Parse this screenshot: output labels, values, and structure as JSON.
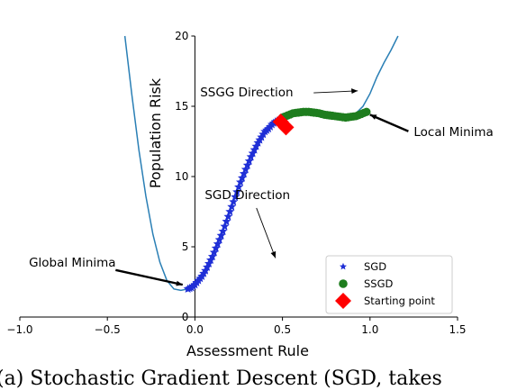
{
  "chart_data": {
    "type": "scatter",
    "xlabel": "Assessment Rule",
    "ylabel": "Population Risk",
    "xlim": [
      -1.0,
      1.5
    ],
    "ylim": [
      0,
      20
    ],
    "xticks": [
      "−1.0",
      "−0.5",
      "0.0",
      "0.5",
      "1.0",
      "1.5"
    ],
    "yticks": [
      "0",
      "5",
      "10",
      "15",
      "20"
    ],
    "curve": {
      "color": "#2a7fb5",
      "x": [
        -0.4,
        -0.36,
        -0.32,
        -0.28,
        -0.24,
        -0.2,
        -0.16,
        -0.12,
        -0.08,
        -0.04,
        0.0,
        0.04,
        0.08,
        0.12,
        0.16,
        0.2,
        0.24,
        0.28,
        0.32,
        0.36,
        0.4,
        0.44,
        0.48,
        0.52,
        0.56,
        0.6,
        0.64,
        0.68,
        0.72,
        0.76,
        0.8,
        0.84,
        0.88,
        0.92,
        0.96,
        1.0,
        1.04,
        1.08,
        1.12,
        1.16
      ],
      "y": [
        20.0,
        15.8,
        11.9,
        8.6,
        5.9,
        3.9,
        2.6,
        2.0,
        1.9,
        2.0,
        2.3,
        2.9,
        3.8,
        4.9,
        6.1,
        7.5,
        8.9,
        10.2,
        11.4,
        12.4,
        13.2,
        13.7,
        14.0,
        14.3,
        14.5,
        14.6,
        14.6,
        14.5,
        14.4,
        14.3,
        14.2,
        14.2,
        14.3,
        14.5,
        15.0,
        15.9,
        17.1,
        18.1,
        19.0,
        20.0
      ]
    },
    "series": [
      {
        "name": "SGD",
        "marker": "star",
        "color": "#1f2fd6",
        "x": [
          -0.04,
          -0.02,
          0.0,
          0.02,
          0.04,
          0.06,
          0.08,
          0.1,
          0.12,
          0.14,
          0.16,
          0.18,
          0.2,
          0.22,
          0.24,
          0.26,
          0.28,
          0.3,
          0.32,
          0.34,
          0.36,
          0.38,
          0.4,
          0.42,
          0.44,
          0.46,
          0.48,
          0.5
        ],
        "y": [
          2.0,
          2.1,
          2.3,
          2.6,
          2.9,
          3.3,
          3.8,
          4.3,
          4.9,
          5.5,
          6.1,
          6.8,
          7.5,
          8.2,
          8.9,
          9.6,
          10.2,
          10.8,
          11.4,
          11.9,
          12.4,
          12.8,
          13.2,
          13.4,
          13.7,
          13.9,
          14.0,
          14.2
        ]
      },
      {
        "name": "SSGD",
        "marker": "circle",
        "color": "#1e7d1e",
        "x": [
          0.5,
          0.53,
          0.56,
          0.59,
          0.62,
          0.65,
          0.68,
          0.71,
          0.74,
          0.77,
          0.8,
          0.83,
          0.86,
          0.89,
          0.92,
          0.95,
          0.98
        ],
        "y": [
          14.2,
          14.35,
          14.5,
          14.55,
          14.6,
          14.6,
          14.55,
          14.5,
          14.4,
          14.35,
          14.3,
          14.25,
          14.2,
          14.25,
          14.3,
          14.45,
          14.6
        ]
      },
      {
        "name": "Starting point",
        "marker": "diamond",
        "color": "#ff0000",
        "x": [
          0.49,
          0.52
        ],
        "y": [
          13.9,
          13.5
        ]
      }
    ],
    "annotations": [
      {
        "text": "SSGG Direction",
        "x_text": 0.03,
        "y_text": 15.7,
        "x_arrow": 0.93,
        "y_arrow": 16.1
      },
      {
        "text": "Local Minima",
        "x_text": 1.25,
        "y_text": 12.9,
        "x_arrow": 1.0,
        "y_arrow": 14.4
      },
      {
        "text": "SGD Direction",
        "x_text": 0.3,
        "y_text": 8.4,
        "x_arrow": 0.46,
        "y_arrow": 4.2
      },
      {
        "text": "Global Minima",
        "x_text": -0.7,
        "y_text": 3.6,
        "x_arrow": -0.07,
        "y_arrow": 2.3
      }
    ],
    "legend_position": "bottom-right",
    "grid": false
  },
  "caption": "(a) Stochastic Gradient Descent (SGD, takes"
}
